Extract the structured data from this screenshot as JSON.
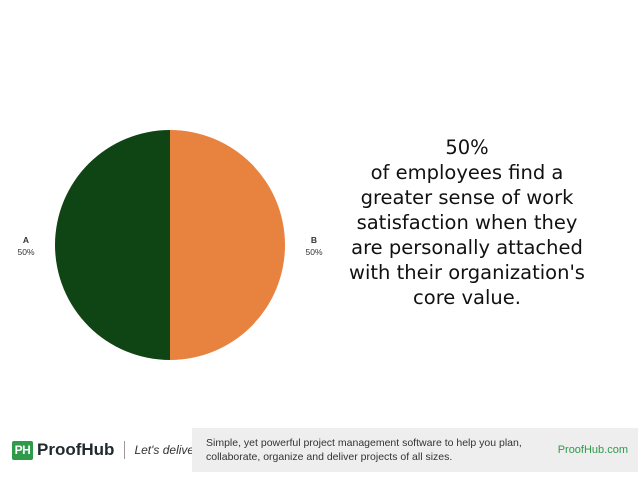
{
  "chart_data": {
    "type": "pie",
    "slices": [
      {
        "label": "A",
        "value": 50,
        "value_label": "50%",
        "color": "#0f4514"
      },
      {
        "label": "B",
        "value": 50,
        "value_label": "50%",
        "color": "#e8823f"
      }
    ]
  },
  "statement": {
    "percent": "50%",
    "text": "of employees find a greater sense of work satisfaction when they are personally attached with their organization's core value."
  },
  "footer": {
    "brand_mark": "PH",
    "brand_name": "ProofHub",
    "tagline": "Let's deliver",
    "description": "Simple, yet powerful project management software to help you plan, collaborate, organize and deliver projects of all sizes.",
    "link": "ProofHub.com",
    "brand_color": "#2e9a4a"
  }
}
